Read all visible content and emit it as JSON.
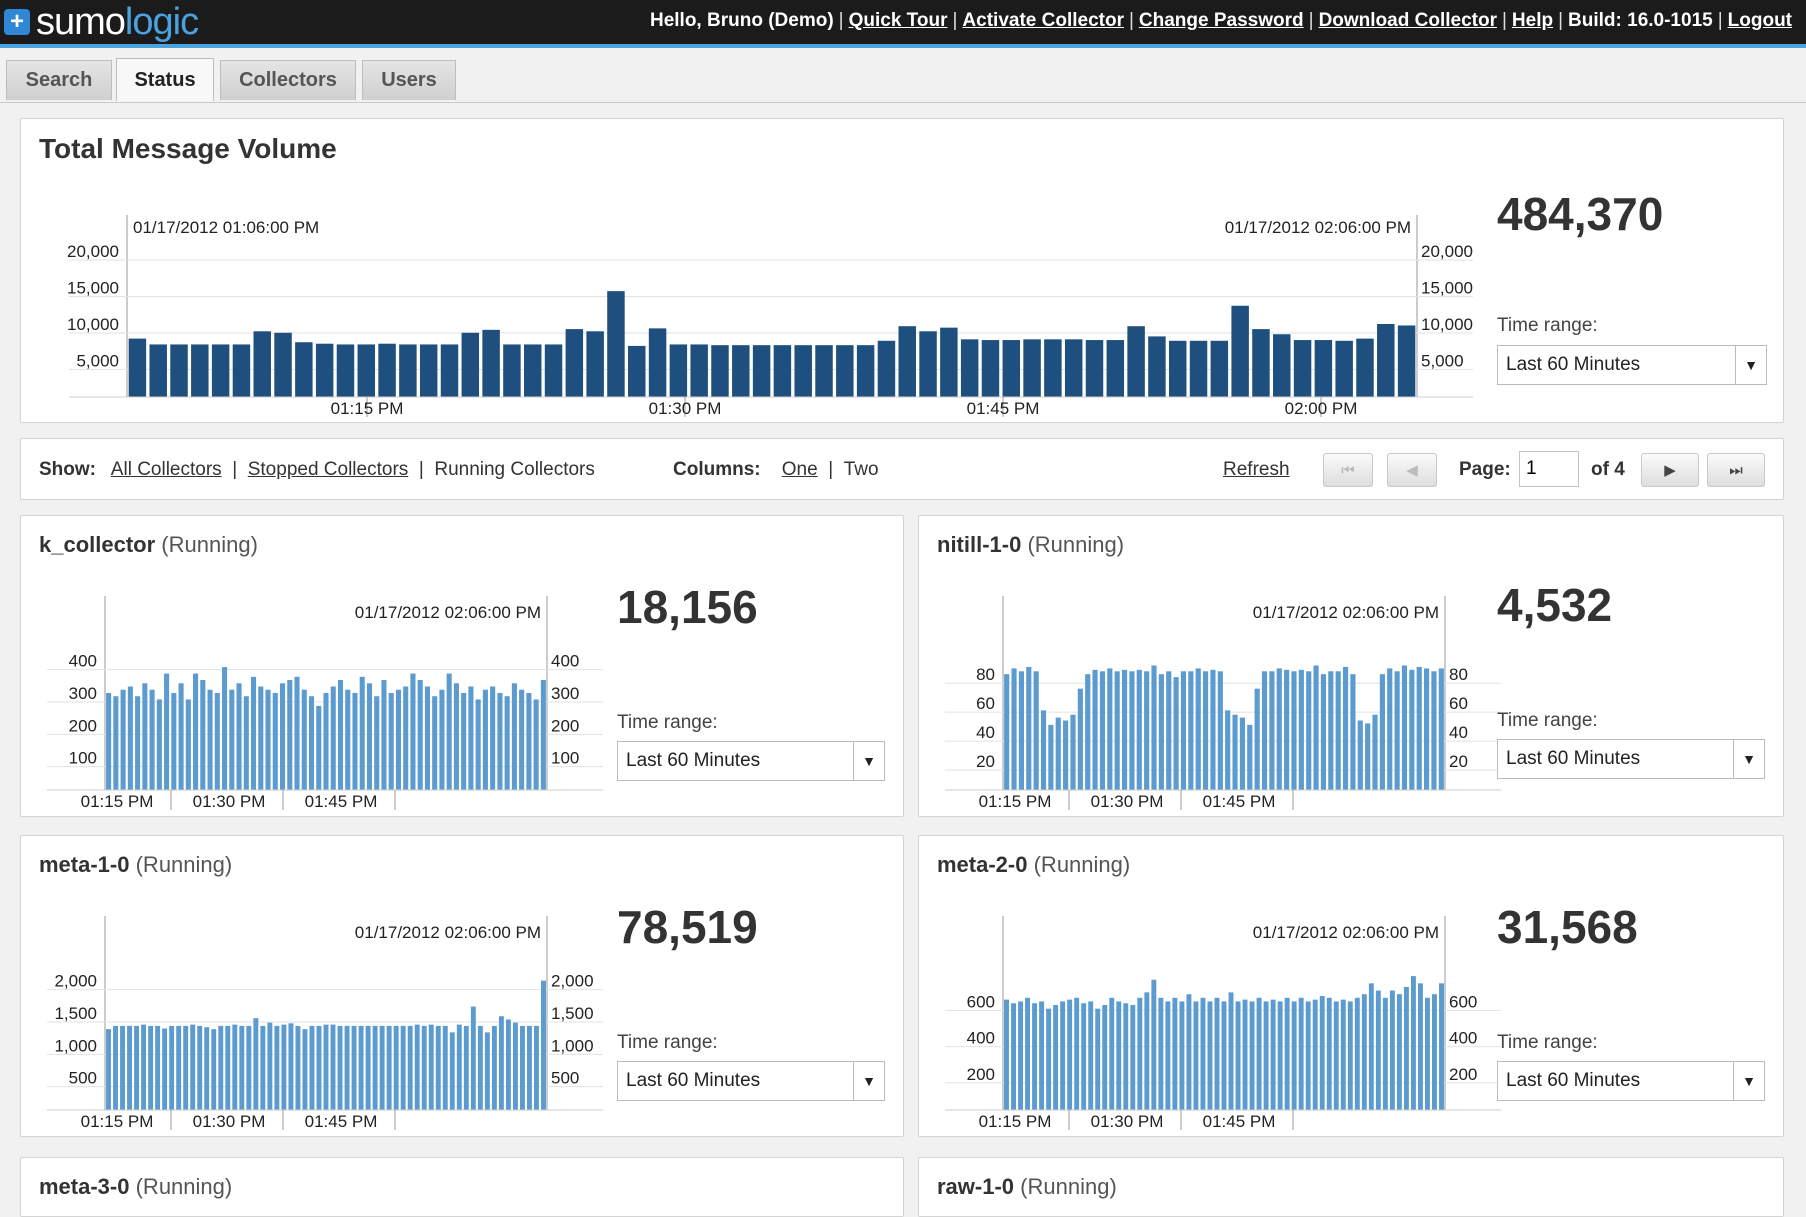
{
  "app": {
    "logo_mark": "+",
    "logo_sumo": "sumo",
    "logo_logic": "logic",
    "greeting": "Hello, Bruno (Demo)",
    "links": [
      "Quick Tour",
      "Activate Collector",
      "Change Password",
      "Download Collector",
      "Help"
    ],
    "build": "Build: 16.0-1015",
    "logout": "Logout"
  },
  "tabs": [
    {
      "label": "Search",
      "active": false
    },
    {
      "label": "Status",
      "active": true
    },
    {
      "label": "Collectors",
      "active": false
    },
    {
      "label": "Users",
      "active": false
    }
  ],
  "total": {
    "title": "Total Message Volume",
    "count": "484,370",
    "time_range_label": "Time range:",
    "time_range_value": "Last 60 Minutes",
    "chart_data": {
      "type": "bar",
      "start_label": "01/17/2012 01:06:00 PM",
      "end_label": "01/17/2012 02:06:00 PM",
      "x_ticks": [
        "01:15 PM",
        "01:30 PM",
        "01:45 PM",
        "02:00 PM"
      ],
      "y_ticks": [
        "20,000",
        "15,000",
        "10,000",
        "5,000"
      ],
      "y_tick_values": [
        20000,
        15000,
        10000,
        5000
      ],
      "ylim": [
        0,
        20000
      ],
      "color": "#1f4f7f",
      "values": [
        8000,
        7200,
        7200,
        7200,
        7200,
        7200,
        9000,
        8800,
        7500,
        7300,
        7200,
        7200,
        7300,
        7200,
        7200,
        7200,
        8800,
        9200,
        7200,
        7200,
        7200,
        9300,
        9000,
        14500,
        7000,
        9400,
        7200,
        7200,
        7100,
        7100,
        7100,
        7100,
        7100,
        7100,
        7100,
        7100,
        7700,
        9700,
        9000,
        9500,
        7900,
        7800,
        7800,
        7900,
        7900,
        7900,
        7800,
        7800,
        9700,
        8300,
        7700,
        7700,
        7700,
        12500,
        9300,
        8600,
        7800,
        7800,
        7700,
        8000,
        10000,
        9800
      ]
    }
  },
  "controls": {
    "show_label": "Show:",
    "show_options": [
      "All Collectors",
      "Stopped Collectors",
      "Running Collectors"
    ],
    "columns_label": "Columns:",
    "columns_options": [
      "One",
      "Two"
    ],
    "refresh": "Refresh",
    "page_label": "Page:",
    "page_value": "1",
    "page_of": "of 4",
    "first_icon": "⏮",
    "prev_icon": "◀",
    "next_icon": "▶",
    "last_icon": "⏭"
  },
  "collectors": [
    {
      "name": "k_collector",
      "status": "(Running)",
      "count": "18,156",
      "time_range_label": "Time range:",
      "time_range_value": "Last 60 Minutes",
      "chart_data": {
        "type": "bar",
        "end_label": "01/17/2012 02:06:00 PM",
        "x_ticks": [
          "01:15 PM",
          "01:30 PM",
          "01:45 PM"
        ],
        "y_ticks": [
          "400",
          "300",
          "200",
          "100"
        ],
        "y_tick_values": [
          400,
          300,
          200,
          100
        ],
        "ylim": [
          0,
          470
        ],
        "color": "#5b9bd0",
        "values": [
          300,
          290,
          310,
          320,
          290,
          330,
          310,
          280,
          360,
          300,
          330,
          280,
          360,
          340,
          310,
          300,
          380,
          310,
          330,
          290,
          350,
          320,
          310,
          300,
          330,
          340,
          350,
          310,
          290,
          260,
          300,
          320,
          340,
          310,
          300,
          350,
          330,
          290,
          340,
          300,
          310,
          320,
          360,
          340,
          320,
          290,
          310,
          360,
          330,
          300,
          320,
          280,
          310,
          320,
          300,
          290,
          330,
          310,
          300,
          280,
          340
        ]
      }
    },
    {
      "name": "nitill-1-0",
      "status": "(Running)",
      "count": "4,532",
      "time_range_label": "Time range:",
      "time_range_value": "Last 60 Minutes",
      "chart_data": {
        "type": "bar",
        "end_label": "01/17/2012 02:06:00 PM",
        "x_ticks": [
          "01:15 PM",
          "01:30 PM",
          "01:45 PM"
        ],
        "y_ticks": [
          "80",
          "60",
          "40",
          "20"
        ],
        "y_tick_values": [
          80,
          60,
          40,
          20
        ],
        "ylim": [
          0,
          105
        ],
        "color": "#5b9bd0",
        "values": [
          80,
          84,
          82,
          85,
          82,
          55,
          45,
          50,
          48,
          52,
          70,
          80,
          83,
          82,
          84,
          82,
          83,
          82,
          83,
          82,
          86,
          80,
          82,
          78,
          82,
          82,
          84,
          82,
          83,
          82,
          55,
          52,
          50,
          45,
          70,
          82,
          82,
          84,
          83,
          82,
          83,
          82,
          86,
          80,
          82,
          82,
          85,
          80,
          48,
          46,
          52,
          80,
          84,
          82,
          86,
          83,
          85,
          84,
          82,
          84
        ]
      }
    },
    {
      "name": "meta-1-0",
      "status": "(Running)",
      "count": "78,519",
      "time_range_label": "Time range:",
      "time_range_value": "Last 60 Minutes",
      "chart_data": {
        "type": "bar",
        "end_label": "01/17/2012 02:06:00 PM",
        "x_ticks": [
          "01:15 PM",
          "01:30 PM",
          "01:45 PM"
        ],
        "y_ticks": [
          "2,000",
          "1,500",
          "1,000",
          "500"
        ],
        "y_tick_values": [
          2000,
          1500,
          1000,
          500
        ],
        "ylim": [
          0,
          2350
        ],
        "color": "#5b9bd0",
        "values": [
          1250,
          1300,
          1300,
          1300,
          1300,
          1320,
          1300,
          1300,
          1260,
          1300,
          1300,
          1300,
          1320,
          1300,
          1280,
          1250,
          1300,
          1300,
          1320,
          1300,
          1300,
          1420,
          1300,
          1350,
          1300,
          1320,
          1340,
          1300,
          1250,
          1300,
          1300,
          1320,
          1320,
          1300,
          1300,
          1300,
          1300,
          1300,
          1300,
          1300,
          1300,
          1300,
          1300,
          1300,
          1320,
          1300,
          1320,
          1300,
          1300,
          1200,
          1320,
          1300,
          1600,
          1300,
          1200,
          1300,
          1450,
          1400,
          1350,
          1300,
          1300,
          1300,
          2000
        ]
      }
    },
    {
      "name": "meta-2-0",
      "status": "(Running)",
      "count": "31,568",
      "time_range_label": "Time range:",
      "time_range_value": "Last 60 Minutes",
      "chart_data": {
        "type": "bar",
        "end_label": "01/17/2012 02:06:00 PM",
        "x_ticks": [
          "01:15 PM",
          "01:30 PM",
          "01:45 PM"
        ],
        "y_ticks": [
          "600",
          "400",
          "200"
        ],
        "y_tick_values": [
          600,
          400,
          200
        ],
        "ylim": [
          0,
          840
        ],
        "color": "#5b9bd0",
        "values": [
          610,
          590,
          600,
          620,
          590,
          600,
          560,
          580,
          600,
          610,
          620,
          590,
          600,
          560,
          580,
          620,
          600,
          590,
          580,
          620,
          650,
          720,
          620,
          600,
          620,
          600,
          640,
          600,
          620,
          600,
          620,
          600,
          650,
          600,
          610,
          600,
          620,
          600,
          610,
          600,
          620,
          600,
          620,
          600,
          610,
          630,
          620,
          600,
          610,
          600,
          620,
          640,
          700,
          660,
          620,
          660,
          640,
          680,
          740,
          700,
          620,
          640,
          700
        ]
      }
    }
  ],
  "more_collectors": [
    {
      "name": "meta-3-0",
      "status": "(Running)"
    },
    {
      "name": "raw-1-0",
      "status": "(Running)"
    }
  ]
}
